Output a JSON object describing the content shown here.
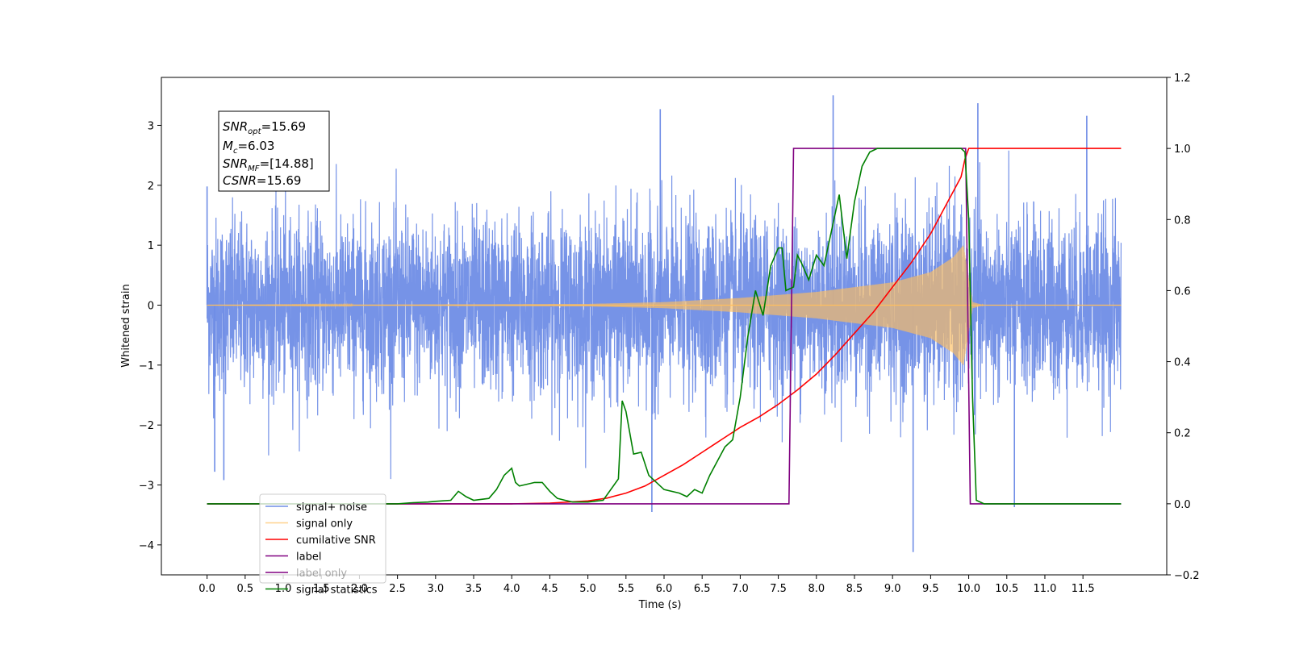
{
  "chart_data": {
    "type": "line",
    "xlabel": "Time (s)",
    "ylabel": "Whitened strain",
    "xlim": [
      -0.6,
      12.6
    ],
    "ylim": [
      -4.5,
      3.8
    ],
    "ylim_right": [
      -0.2,
      1.2
    ],
    "x_ticks": [
      0.0,
      0.5,
      1.0,
      1.5,
      2.0,
      2.5,
      3.0,
      3.5,
      4.0,
      4.5,
      5.0,
      5.5,
      6.0,
      6.5,
      7.0,
      7.5,
      8.0,
      8.5,
      9.0,
      9.5,
      10.0,
      10.5,
      11.0,
      11.5
    ],
    "x_tick_labels": [
      "0.0",
      "0.5",
      "1.0",
      "1.5",
      "2.0",
      "2.5",
      "3.0",
      "3.5",
      "4.0",
      "4.5",
      "5.0",
      "5.5",
      "6.0",
      "6.5",
      "7.0",
      "7.5",
      "8.0",
      "8.5",
      "9.0",
      "9.5",
      "10.0",
      "10.5",
      "11.0",
      "11.5"
    ],
    "y_ticks_left": [
      -4,
      -3,
      -2,
      -1,
      0,
      1,
      2,
      3
    ],
    "y_tick_labels_left": [
      "−4",
      "−3",
      "−2",
      "−1",
      "0",
      "1",
      "2",
      "3"
    ],
    "y_ticks_right": [
      -0.2,
      0.0,
      0.2,
      0.4,
      0.6,
      0.8,
      1.0,
      1.2
    ],
    "y_tick_labels_right": [
      "−0.2",
      "0.0",
      "0.2",
      "0.4",
      "0.6",
      "0.8",
      "1.0",
      "1.2"
    ],
    "grid": false,
    "legend_placement": "lower-left",
    "annotations": {
      "snr_opt": {
        "symbol": "SNR",
        "subscript": "opt",
        "value": "=15.69"
      },
      "mc": {
        "symbol": "M",
        "subscript": "c",
        "value": "=6.03"
      },
      "snr_mf": {
        "symbol": "SNR",
        "subscript": "MF",
        "value": "=[14.88]"
      },
      "csnr": {
        "symbol": "CSNR",
        "subscript": "",
        "value": "=15.69"
      }
    },
    "series": [
      {
        "name": "signal+ noise",
        "axis": "left",
        "color": "#6f8de6",
        "description_values": {
          "x_start": 0.0,
          "x_end": 12.0,
          "noise_sigma": 0.72,
          "peaks": [
            [
              0.0,
              1.98
            ],
            [
              0.1,
              -2.78
            ],
            [
              0.22,
              -2.92
            ],
            [
              5.84,
              -3.45
            ],
            [
              5.95,
              3.27
            ],
            [
              8.22,
              3.5
            ],
            [
              9.27,
              -4.12
            ],
            [
              10.12,
              3.37
            ],
            [
              10.6,
              -3.37
            ],
            [
              11.55,
              3.16
            ]
          ]
        }
      },
      {
        "name": "signal only",
        "axis": "left",
        "color": "#ffbf5e",
        "description_values": {
          "x_start": 0.0,
          "x_end": 12.0,
          "merger_time": 9.95,
          "peak_amplitude": 1.0,
          "envelope": [
            [
              0.0,
              0.0
            ],
            [
              5.0,
              0.02
            ],
            [
              6.0,
              0.05
            ],
            [
              7.0,
              0.12
            ],
            [
              8.0,
              0.22
            ],
            [
              9.0,
              0.38
            ],
            [
              9.5,
              0.55
            ],
            [
              9.8,
              0.8
            ],
            [
              9.93,
              1.0
            ],
            [
              10.05,
              0.05
            ],
            [
              10.2,
              0.0
            ],
            [
              12.0,
              0.0
            ]
          ]
        }
      },
      {
        "name": "cumilative SNR",
        "axis": "right",
        "color": "#ff0000",
        "x": [
          0.0,
          2.0,
          4.0,
          4.5,
          5.0,
          5.25,
          5.5,
          5.75,
          6.0,
          6.25,
          6.5,
          6.75,
          7.0,
          7.25,
          7.5,
          7.75,
          8.0,
          8.25,
          8.5,
          8.75,
          9.0,
          9.25,
          9.5,
          9.65,
          9.8,
          9.9,
          9.95,
          10.0,
          10.05,
          11.0,
          12.0
        ],
        "y": [
          0.0,
          0.0,
          0.0,
          0.002,
          0.008,
          0.016,
          0.03,
          0.05,
          0.08,
          0.11,
          0.145,
          0.18,
          0.215,
          0.245,
          0.28,
          0.32,
          0.365,
          0.42,
          0.48,
          0.54,
          0.61,
          0.68,
          0.76,
          0.82,
          0.88,
          0.92,
          0.97,
          1.0,
          1.0,
          1.0,
          1.0
        ]
      },
      {
        "name": "label",
        "axis": "right",
        "color": "#800080",
        "x": [
          0.0,
          7.64,
          7.7,
          9.96,
          10.02,
          12.0
        ],
        "y": [
          0.0,
          0.0,
          1.0,
          1.0,
          0.0,
          0.0
        ]
      },
      {
        "name": "label only",
        "axis": "right",
        "color": "#800080",
        "hidden_behind": true,
        "x": [],
        "y": []
      },
      {
        "name": "signal statistics",
        "axis": "right",
        "color": "#008000",
        "x": [
          0.0,
          2.0,
          2.5,
          2.7,
          2.9,
          3.0,
          3.2,
          3.3,
          3.4,
          3.5,
          3.7,
          3.8,
          3.9,
          4.0,
          4.05,
          4.1,
          4.2,
          4.3,
          4.4,
          4.5,
          4.6,
          4.7,
          4.8,
          5.0,
          5.2,
          5.4,
          5.45,
          5.5,
          5.6,
          5.7,
          5.8,
          5.9,
          6.0,
          6.2,
          6.3,
          6.4,
          6.5,
          6.6,
          6.8,
          6.9,
          7.0,
          7.1,
          7.2,
          7.3,
          7.4,
          7.5,
          7.55,
          7.6,
          7.7,
          7.75,
          7.8,
          7.9,
          8.0,
          8.1,
          8.2,
          8.3,
          8.4,
          8.5,
          8.6,
          8.7,
          8.8,
          9.0,
          9.5,
          9.9,
          9.95,
          10.0,
          10.05,
          10.1,
          10.2,
          11.0,
          12.0
        ],
        "y": [
          0.0,
          0.0,
          0.0,
          0.003,
          0.005,
          0.007,
          0.01,
          0.035,
          0.02,
          0.01,
          0.015,
          0.04,
          0.08,
          0.1,
          0.06,
          0.05,
          0.055,
          0.06,
          0.06,
          0.035,
          0.015,
          0.01,
          0.005,
          0.005,
          0.01,
          0.07,
          0.29,
          0.26,
          0.14,
          0.145,
          0.08,
          0.06,
          0.04,
          0.03,
          0.02,
          0.04,
          0.03,
          0.08,
          0.16,
          0.18,
          0.3,
          0.47,
          0.6,
          0.53,
          0.67,
          0.72,
          0.72,
          0.6,
          0.61,
          0.7,
          0.68,
          0.63,
          0.7,
          0.67,
          0.77,
          0.87,
          0.69,
          0.85,
          0.95,
          0.99,
          1.0,
          1.0,
          1.0,
          1.0,
          0.99,
          0.8,
          0.3,
          0.01,
          0.0,
          0.0,
          0.0
        ]
      }
    ]
  }
}
